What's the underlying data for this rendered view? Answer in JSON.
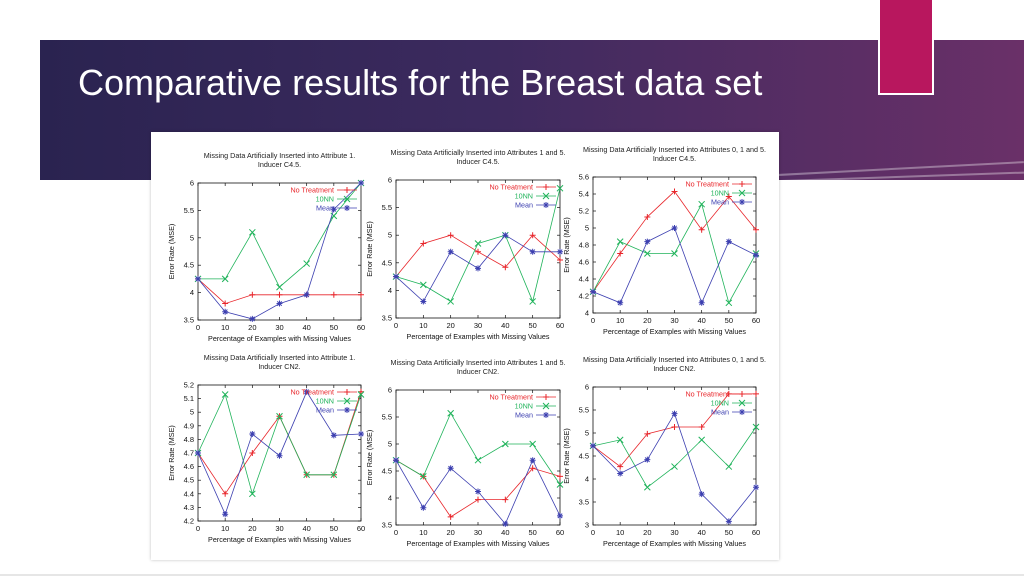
{
  "slide": {
    "title": "Comparative results for the Breast data set",
    "colors": {
      "banner": "#2a2350",
      "banner_end": "#6a3068",
      "accent": "#b8175e"
    }
  },
  "chart_data": [
    {
      "type": "line",
      "title": "Missing Data Artificially Inserted into Attribute 1.",
      "subtitle": "Inducer C4.5.",
      "xlabel": "Percentage of Examples with Missing Values",
      "ylabel": "Error Rate (MSE)",
      "x": [
        0,
        10,
        20,
        30,
        40,
        50,
        60
      ],
      "xticks": [
        0,
        10,
        20,
        30,
        40,
        50,
        60
      ],
      "ylim": [
        3.5,
        6
      ],
      "yticks": [
        3.5,
        4,
        4.5,
        5,
        5.5,
        6
      ],
      "legend": "top-right",
      "series": [
        {
          "name": "No Treatment",
          "color": "#e8252a",
          "marker": "plus",
          "values": [
            4.25,
            3.8,
            3.96,
            3.96,
            3.96,
            3.96,
            3.96
          ]
        },
        {
          "name": "10NN",
          "color": "#1fb35a",
          "marker": "x",
          "values": [
            4.25,
            4.25,
            5.1,
            4.1,
            4.53,
            5.4,
            6.0
          ]
        },
        {
          "name": "Mean",
          "color": "#3c3fb0",
          "marker": "star",
          "values": [
            4.25,
            3.65,
            3.52,
            3.8,
            3.96,
            5.52,
            6.0
          ]
        }
      ]
    },
    {
      "type": "line",
      "title": "Missing Data Artificially Inserted into Attributes 1 and 5.",
      "subtitle": "Inducer C4.5.",
      "xlabel": "Percentage of Examples with Missing Values",
      "ylabel": "Error Rate (MSE)",
      "x": [
        0,
        10,
        20,
        30,
        40,
        50,
        60
      ],
      "xticks": [
        0,
        10,
        20,
        30,
        40,
        50,
        60
      ],
      "ylim": [
        3.5,
        6
      ],
      "yticks": [
        3.5,
        4,
        4.5,
        5,
        5.5,
        6
      ],
      "legend": "top-right",
      "series": [
        {
          "name": "No Treatment",
          "color": "#e8252a",
          "marker": "plus",
          "values": [
            4.25,
            4.85,
            5.0,
            4.7,
            4.42,
            5.0,
            4.55
          ]
        },
        {
          "name": "10NN",
          "color": "#1fb35a",
          "marker": "x",
          "values": [
            4.25,
            4.1,
            3.8,
            4.85,
            5.0,
            3.8,
            5.85
          ]
        },
        {
          "name": "Mean",
          "color": "#3c3fb0",
          "marker": "star",
          "values": [
            4.25,
            3.8,
            4.7,
            4.4,
            5.0,
            4.7,
            4.7
          ]
        }
      ]
    },
    {
      "type": "line",
      "title": "Missing Data Artificially Inserted into Attributes 0, 1 and 5.",
      "subtitle": "Inducer C4.5.",
      "xlabel": "Percentage of Examples with Missing Values",
      "ylabel": "Error Rate (MSE)",
      "x": [
        0,
        10,
        20,
        30,
        40,
        50,
        60
      ],
      "xticks": [
        0,
        10,
        20,
        30,
        40,
        50,
        60
      ],
      "ylim": [
        4,
        5.6
      ],
      "yticks": [
        4,
        4.2,
        4.4,
        4.6,
        4.8,
        5,
        5.2,
        5.4,
        5.6
      ],
      "legend": "top-right",
      "series": [
        {
          "name": "No Treatment",
          "color": "#e8252a",
          "marker": "plus",
          "values": [
            4.25,
            4.7,
            5.13,
            5.43,
            4.98,
            5.37,
            4.98
          ]
        },
        {
          "name": "10NN",
          "color": "#1fb35a",
          "marker": "x",
          "values": [
            4.25,
            4.84,
            4.7,
            4.7,
            5.28,
            4.12,
            4.7
          ]
        },
        {
          "name": "Mean",
          "color": "#3c3fb0",
          "marker": "star",
          "values": [
            4.25,
            4.12,
            4.84,
            5.0,
            4.12,
            4.84,
            4.68
          ]
        }
      ]
    },
    {
      "type": "line",
      "title": "Missing Data Artificially Inserted into Attribute 1.",
      "subtitle": "Inducer CN2.",
      "xlabel": "Percentage of Examples with Missing Values",
      "ylabel": "Error Rate (MSE)",
      "x": [
        0,
        10,
        20,
        30,
        40,
        50,
        60
      ],
      "xticks": [
        0,
        10,
        20,
        30,
        40,
        50,
        60
      ],
      "ylim": [
        4.2,
        5.2
      ],
      "yticks": [
        4.2,
        4.3,
        4.4,
        4.5,
        4.6,
        4.7,
        4.8,
        4.9,
        5,
        5.1,
        5.2
      ],
      "legend": "top-right",
      "series": [
        {
          "name": "No Treatment",
          "color": "#e8252a",
          "marker": "plus",
          "values": [
            4.7,
            4.4,
            4.7,
            4.97,
            4.54,
            4.54,
            5.15
          ]
        },
        {
          "name": "10NN",
          "color": "#1fb35a",
          "marker": "x",
          "values": [
            4.7,
            5.13,
            4.4,
            4.97,
            4.54,
            4.54,
            5.13
          ]
        },
        {
          "name": "Mean",
          "color": "#3c3fb0",
          "marker": "star",
          "values": [
            4.7,
            4.25,
            4.84,
            4.68,
            5.15,
            4.83,
            4.84
          ]
        }
      ]
    },
    {
      "type": "line",
      "title": "Missing Data Artificially Inserted into Attributes 1 and 5.",
      "subtitle": "Inducer CN2.",
      "xlabel": "Percentage of Examples with Missing Values",
      "ylabel": "Error Rate (MSE)",
      "x": [
        0,
        10,
        20,
        30,
        40,
        50,
        60
      ],
      "xticks": [
        0,
        10,
        20,
        30,
        40,
        50,
        60
      ],
      "ylim": [
        3.5,
        6
      ],
      "yticks": [
        3.5,
        4,
        4.5,
        5,
        5.5,
        6
      ],
      "legend": "top-right",
      "series": [
        {
          "name": "No Treatment",
          "color": "#e8252a",
          "marker": "plus",
          "values": [
            4.7,
            4.4,
            3.65,
            3.97,
            3.97,
            4.55,
            4.4
          ]
        },
        {
          "name": "10NN",
          "color": "#1fb35a",
          "marker": "x",
          "values": [
            4.7,
            4.4,
            5.57,
            4.7,
            5.0,
            5.0,
            4.25
          ]
        },
        {
          "name": "Mean",
          "color": "#3c3fb0",
          "marker": "star",
          "values": [
            4.7,
            3.82,
            4.55,
            4.12,
            3.52,
            4.7,
            3.67
          ]
        }
      ]
    },
    {
      "type": "line",
      "title": "Missing Data Artificially Inserted into Attributes 0, 1 and 5.",
      "subtitle": "Inducer CN2.",
      "xlabel": "Percentage of Examples with Missing Values",
      "ylabel": "Error Rate (MSE)",
      "x": [
        0,
        10,
        20,
        30,
        40,
        50,
        60
      ],
      "xticks": [
        0,
        10,
        20,
        30,
        40,
        50,
        60
      ],
      "ylim": [
        3,
        6
      ],
      "yticks": [
        3,
        3.5,
        4,
        4.5,
        5,
        5.5,
        6
      ],
      "legend": "top-right",
      "series": [
        {
          "name": "No Treatment",
          "color": "#e8252a",
          "marker": "plus",
          "values": [
            4.72,
            4.27,
            4.98,
            5.13,
            5.13,
            5.85,
            5.85
          ]
        },
        {
          "name": "10NN",
          "color": "#1fb35a",
          "marker": "x",
          "values": [
            4.72,
            4.85,
            3.82,
            4.27,
            4.85,
            4.27,
            5.13
          ]
        },
        {
          "name": "Mean",
          "color": "#3c3fb0",
          "marker": "star",
          "values": [
            4.72,
            4.12,
            4.42,
            5.42,
            3.67,
            3.08,
            3.82
          ]
        }
      ]
    }
  ]
}
